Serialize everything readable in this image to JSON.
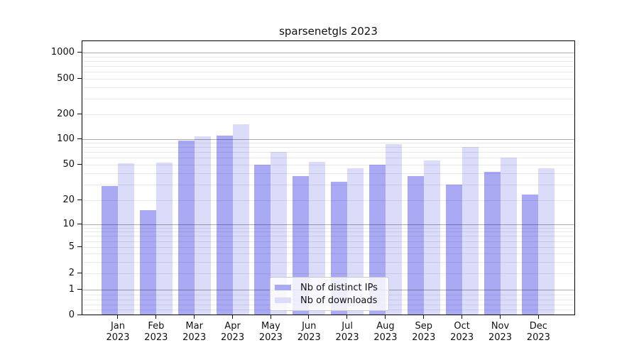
{
  "title": "sparsenetgls 2023",
  "chart_data": {
    "type": "bar",
    "title": "sparsenetgls 2023",
    "categories": [
      "Jan",
      "Feb",
      "Mar",
      "Apr",
      "May",
      "Jun",
      "Jul",
      "Aug",
      "Sep",
      "Oct",
      "Nov",
      "Dec"
    ],
    "year_label": "2023",
    "series": [
      {
        "name": "Nb of distinct IPs",
        "color": "#a9a9f4",
        "values": [
          29,
          15,
          95,
          110,
          50,
          37,
          32,
          50,
          37,
          30,
          42,
          23
        ]
      },
      {
        "name": "Nb of downloads",
        "color": "#dbdbfa",
        "values": [
          52,
          53,
          108,
          150,
          70,
          54,
          46,
          87,
          56,
          80,
          61,
          46
        ]
      }
    ],
    "y_ticks": [
      0,
      1,
      2,
      5,
      10,
      20,
      50,
      100,
      200,
      500,
      1000
    ],
    "yscale": "symlog",
    "grid": true,
    "legend_position": "lower center"
  },
  "colors": {
    "bar_distinct_ips": "#a9a9f4",
    "bar_downloads": "#dbdbfa",
    "grid_major": "#b3b3b3",
    "grid_minor": "#e9e9e9",
    "axis": "#000000",
    "background": "#ffffff",
    "text": "#111111"
  }
}
